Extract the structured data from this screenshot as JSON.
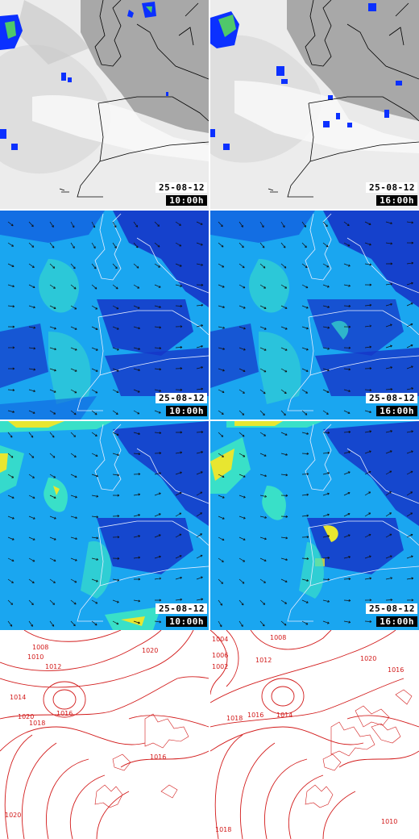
{
  "colors": {
    "satellite_land": "#a8a8a8",
    "satellite_cloud": "#f4f4f4",
    "satellite_precip": "#0b30ff",
    "satellite_precip_core": "#4fc86a",
    "wind_low": "#1536c8",
    "wind_mid": "#1aa6f0",
    "wind_high": "#39e0c8",
    "wind_peak": "#e8e630",
    "coastline_dark": "#000000",
    "coastline_light": "#e8eeff",
    "isobar": "#d21a1a"
  },
  "rows": [
    {
      "kind": "satellite",
      "panels": [
        {
          "date": "25-08-12",
          "time": "10:00h"
        },
        {
          "date": "25-08-12",
          "time": "16:00h"
        }
      ]
    },
    {
      "kind": "wind",
      "panels": [
        {
          "date": "25-08-12",
          "time": "10:00h"
        },
        {
          "date": "25-08-12",
          "time": "16:00h"
        }
      ]
    },
    {
      "kind": "wind-gust",
      "panels": [
        {
          "date": "25-08-12",
          "time": "10:00h"
        },
        {
          "date": "25-08-12",
          "time": "16:00h"
        }
      ]
    },
    {
      "kind": "pressure",
      "panels": [
        {
          "isobar_labels": [
            "1008",
            "1010",
            "1012",
            "1014",
            "1016",
            "1018",
            "1020",
            "1020",
            "1016",
            "1020"
          ]
        },
        {
          "isobar_labels": [
            "1004",
            "1006",
            "1008",
            "1002",
            "1012",
            "1014",
            "1016",
            "1018",
            "1020",
            "1018",
            "1016",
            "1010"
          ]
        }
      ]
    }
  ]
}
